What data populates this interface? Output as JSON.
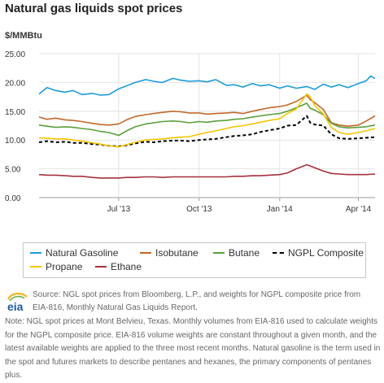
{
  "header": {
    "title": "Natural gas liquids spot prices",
    "unit": "$/MMBtu"
  },
  "legend": {
    "items": [
      {
        "label": "Natural Gasoline",
        "color": "#1a9bd7",
        "style": "solid"
      },
      {
        "label": "Isobutane",
        "color": "#c0692b",
        "style": "solid"
      },
      {
        "label": "Butane",
        "color": "#5a9f3c",
        "style": "solid"
      },
      {
        "label": "NGPL Composite",
        "color": "#000000",
        "style": "dashed"
      },
      {
        "label": "Propane",
        "color": "#f5c400",
        "style": "solid"
      },
      {
        "label": "Ethane",
        "color": "#a5313d",
        "style": "solid"
      }
    ]
  },
  "footer": {
    "logo_text": "eia",
    "source": "Source: NGL spot prices from Bloomberg, L.P., and weights for NGPL composite price from EIA-816, Monthly Natural Gas Liquids Report.",
    "note": "Note: NGL spot prices at Mont Belvieu, Texas. Monthly volumes from EIA-816 used to calculate weights for the NGPL composite price. EIA-816 volume weights are constant throughout a given month, and the latest available weights are applied to the three most recent months. Natural gasoline is the term used in the spot and futures markets to describe pentanes and hexanes, the primary components of pentanes plus."
  },
  "chart_data": {
    "type": "line",
    "title": "Natural gas liquids spot prices",
    "ylabel": "$/MMBtu",
    "ylim": [
      0,
      25
    ],
    "yticks": [
      "0.00",
      "5.00",
      "10.00",
      "15.00",
      "20.00",
      "25.00"
    ],
    "xlim": [
      "2013-04-01",
      "2014-04-20"
    ],
    "xticks": [
      {
        "date": "2013-07-01",
        "label": "Jul '13"
      },
      {
        "date": "2013-10-01",
        "label": "Oct '13"
      },
      {
        "date": "2014-01-01",
        "label": "Jan '14"
      },
      {
        "date": "2014-04-01",
        "label": "Apr '14"
      }
    ],
    "grid": true,
    "legend_position": "bottom",
    "series": [
      {
        "name": "Natural Gasoline",
        "color": "#1a9bd7",
        "dashed": false,
        "x": [
          "2013-04-01",
          "2013-04-10",
          "2013-04-20",
          "2013-05-01",
          "2013-05-10",
          "2013-05-20",
          "2013-06-01",
          "2013-06-10",
          "2013-06-20",
          "2013-07-01",
          "2013-07-10",
          "2013-07-20",
          "2013-08-01",
          "2013-08-10",
          "2013-08-20",
          "2013-09-01",
          "2013-09-10",
          "2013-09-20",
          "2013-10-01",
          "2013-10-10",
          "2013-10-20",
          "2013-11-01",
          "2013-11-10",
          "2013-11-20",
          "2013-12-01",
          "2013-12-10",
          "2013-12-20",
          "2014-01-01",
          "2014-01-10",
          "2014-01-20",
          "2014-02-01",
          "2014-02-10",
          "2014-02-20",
          "2014-03-01",
          "2014-03-10",
          "2014-03-20",
          "2014-04-01",
          "2014-04-10",
          "2014-04-15",
          "2014-04-20"
        ],
        "y": [
          18.0,
          19.1,
          18.6,
          18.3,
          18.6,
          17.9,
          18.1,
          17.8,
          17.9,
          18.9,
          19.4,
          20.0,
          20.5,
          20.2,
          20.0,
          20.7,
          20.4,
          20.2,
          20.3,
          20.1,
          20.5,
          19.5,
          19.6,
          19.2,
          19.8,
          19.4,
          19.6,
          19.0,
          19.4,
          19.0,
          19.3,
          18.8,
          19.7,
          19.2,
          19.6,
          19.1,
          19.8,
          20.3,
          21.1,
          20.7
        ]
      },
      {
        "name": "Isobutane",
        "color": "#c0692b",
        "dashed": false,
        "x": [
          "2013-04-01",
          "2013-04-10",
          "2013-04-20",
          "2013-05-01",
          "2013-05-10",
          "2013-05-20",
          "2013-06-01",
          "2013-06-10",
          "2013-06-20",
          "2013-07-01",
          "2013-07-10",
          "2013-07-20",
          "2013-08-01",
          "2013-08-10",
          "2013-08-20",
          "2013-09-01",
          "2013-09-10",
          "2013-09-20",
          "2013-10-01",
          "2013-10-10",
          "2013-10-20",
          "2013-11-01",
          "2013-11-10",
          "2013-11-20",
          "2013-12-01",
          "2013-12-10",
          "2013-12-20",
          "2014-01-01",
          "2014-01-10",
          "2014-01-20",
          "2014-02-01",
          "2014-02-05",
          "2014-02-10",
          "2014-02-20",
          "2014-03-01",
          "2014-03-10",
          "2014-03-20",
          "2014-04-01",
          "2014-04-10",
          "2014-04-20"
        ],
        "y": [
          14.0,
          13.6,
          13.8,
          13.5,
          13.4,
          13.2,
          12.9,
          12.7,
          12.6,
          12.8,
          13.5,
          14.1,
          14.4,
          14.6,
          14.8,
          15.0,
          14.9,
          14.7,
          14.7,
          14.5,
          14.6,
          14.7,
          14.8,
          14.6,
          15.0,
          15.3,
          15.6,
          15.8,
          16.1,
          16.7,
          17.8,
          17.0,
          16.5,
          15.3,
          13.0,
          12.6,
          12.4,
          12.6,
          13.3,
          14.2
        ]
      },
      {
        "name": "Butane",
        "color": "#5a9f3c",
        "dashed": false,
        "x": [
          "2013-04-01",
          "2013-04-10",
          "2013-04-20",
          "2013-05-01",
          "2013-05-10",
          "2013-05-20",
          "2013-06-01",
          "2013-06-10",
          "2013-06-20",
          "2013-07-01",
          "2013-07-10",
          "2013-07-20",
          "2013-08-01",
          "2013-08-10",
          "2013-08-20",
          "2013-09-01",
          "2013-09-10",
          "2013-09-20",
          "2013-10-01",
          "2013-10-10",
          "2013-10-20",
          "2013-11-01",
          "2013-11-10",
          "2013-11-20",
          "2013-12-01",
          "2013-12-10",
          "2013-12-20",
          "2014-01-01",
          "2014-01-10",
          "2014-01-20",
          "2014-02-01",
          "2014-02-05",
          "2014-02-10",
          "2014-02-20",
          "2014-03-01",
          "2014-03-10",
          "2014-03-20",
          "2014-04-01",
          "2014-04-10",
          "2014-04-20"
        ],
        "y": [
          12.6,
          12.4,
          12.2,
          12.3,
          12.2,
          12.0,
          11.8,
          11.5,
          11.3,
          10.8,
          11.6,
          12.3,
          12.8,
          13.0,
          13.2,
          13.3,
          13.2,
          13.0,
          13.2,
          13.1,
          13.3,
          13.4,
          13.6,
          13.7,
          14.0,
          14.2,
          14.4,
          14.6,
          15.0,
          15.6,
          16.4,
          15.5,
          15.2,
          14.4,
          12.9,
          12.3,
          12.1,
          12.2,
          12.3,
          12.6
        ]
      },
      {
        "name": "NGPL Composite",
        "color": "#000000",
        "dashed": true,
        "x": [
          "2013-04-01",
          "2013-04-10",
          "2013-04-20",
          "2013-05-01",
          "2013-05-10",
          "2013-05-20",
          "2013-06-01",
          "2013-06-10",
          "2013-06-20",
          "2013-07-01",
          "2013-07-10",
          "2013-07-20",
          "2013-08-01",
          "2013-08-10",
          "2013-08-20",
          "2013-09-01",
          "2013-09-10",
          "2013-09-20",
          "2013-10-01",
          "2013-10-10",
          "2013-10-20",
          "2013-11-01",
          "2013-11-10",
          "2013-11-20",
          "2013-12-01",
          "2013-12-10",
          "2013-12-20",
          "2014-01-01",
          "2014-01-10",
          "2014-01-20",
          "2014-02-01",
          "2014-02-05",
          "2014-02-10",
          "2014-02-20",
          "2014-03-01",
          "2014-03-10",
          "2014-03-20",
          "2014-04-01",
          "2014-04-10",
          "2014-04-20"
        ],
        "y": [
          9.6,
          9.8,
          9.6,
          9.7,
          9.5,
          9.5,
          9.3,
          9.2,
          9.0,
          8.9,
          9.1,
          9.4,
          9.7,
          9.6,
          9.8,
          9.9,
          9.9,
          9.8,
          10.0,
          10.1,
          10.2,
          10.5,
          10.7,
          10.8,
          11.0,
          11.4,
          11.7,
          12.0,
          12.5,
          12.6,
          14.2,
          13.0,
          12.7,
          12.5,
          11.0,
          10.3,
          10.2,
          10.3,
          10.4,
          10.5
        ]
      },
      {
        "name": "Propane",
        "color": "#f5c400",
        "dashed": false,
        "x": [
          "2013-04-01",
          "2013-04-10",
          "2013-04-20",
          "2013-05-01",
          "2013-05-10",
          "2013-05-20",
          "2013-06-01",
          "2013-06-10",
          "2013-06-20",
          "2013-07-01",
          "2013-07-10",
          "2013-07-20",
          "2013-08-01",
          "2013-08-10",
          "2013-08-20",
          "2013-09-01",
          "2013-09-10",
          "2013-09-20",
          "2013-10-01",
          "2013-10-10",
          "2013-10-20",
          "2013-11-01",
          "2013-11-10",
          "2013-11-20",
          "2013-12-01",
          "2013-12-10",
          "2013-12-20",
          "2014-01-01",
          "2014-01-10",
          "2014-01-20",
          "2014-02-01",
          "2014-02-05",
          "2014-02-10",
          "2014-02-20",
          "2014-03-01",
          "2014-03-10",
          "2014-03-20",
          "2014-04-01",
          "2014-04-10",
          "2014-04-20"
        ],
        "y": [
          10.4,
          10.3,
          10.2,
          10.2,
          10.0,
          9.8,
          9.5,
          9.3,
          9.0,
          8.8,
          9.2,
          9.6,
          10.0,
          10.1,
          10.2,
          10.4,
          10.5,
          10.6,
          11.0,
          11.3,
          11.6,
          12.0,
          12.3,
          12.5,
          12.8,
          13.1,
          13.4,
          13.7,
          14.6,
          15.4,
          18.0,
          17.5,
          16.0,
          14.5,
          12.2,
          11.3,
          11.0,
          11.3,
          11.6,
          12.0
        ]
      },
      {
        "name": "Ethane",
        "color": "#a5313d",
        "dashed": false,
        "x": [
          "2013-04-01",
          "2013-04-10",
          "2013-04-20",
          "2013-05-01",
          "2013-05-10",
          "2013-05-20",
          "2013-06-01",
          "2013-06-10",
          "2013-06-20",
          "2013-07-01",
          "2013-07-10",
          "2013-07-20",
          "2013-08-01",
          "2013-08-10",
          "2013-08-20",
          "2013-09-01",
          "2013-09-10",
          "2013-09-20",
          "2013-10-01",
          "2013-10-10",
          "2013-10-20",
          "2013-11-01",
          "2013-11-10",
          "2013-11-20",
          "2013-12-01",
          "2013-12-10",
          "2013-12-20",
          "2014-01-01",
          "2014-01-10",
          "2014-01-20",
          "2014-02-01",
          "2014-02-05",
          "2014-02-10",
          "2014-02-20",
          "2014-03-01",
          "2014-03-10",
          "2014-03-20",
          "2014-04-01",
          "2014-04-10",
          "2014-04-20"
        ],
        "y": [
          4.0,
          3.9,
          3.9,
          3.8,
          3.7,
          3.7,
          3.5,
          3.4,
          3.4,
          3.4,
          3.5,
          3.5,
          3.6,
          3.6,
          3.5,
          3.6,
          3.6,
          3.6,
          3.6,
          3.6,
          3.6,
          3.6,
          3.7,
          3.7,
          3.8,
          3.8,
          3.9,
          4.0,
          4.3,
          5.0,
          5.7,
          5.5,
          5.2,
          4.6,
          4.2,
          4.1,
          4.0,
          4.0,
          4.0,
          4.1
        ]
      }
    ]
  }
}
